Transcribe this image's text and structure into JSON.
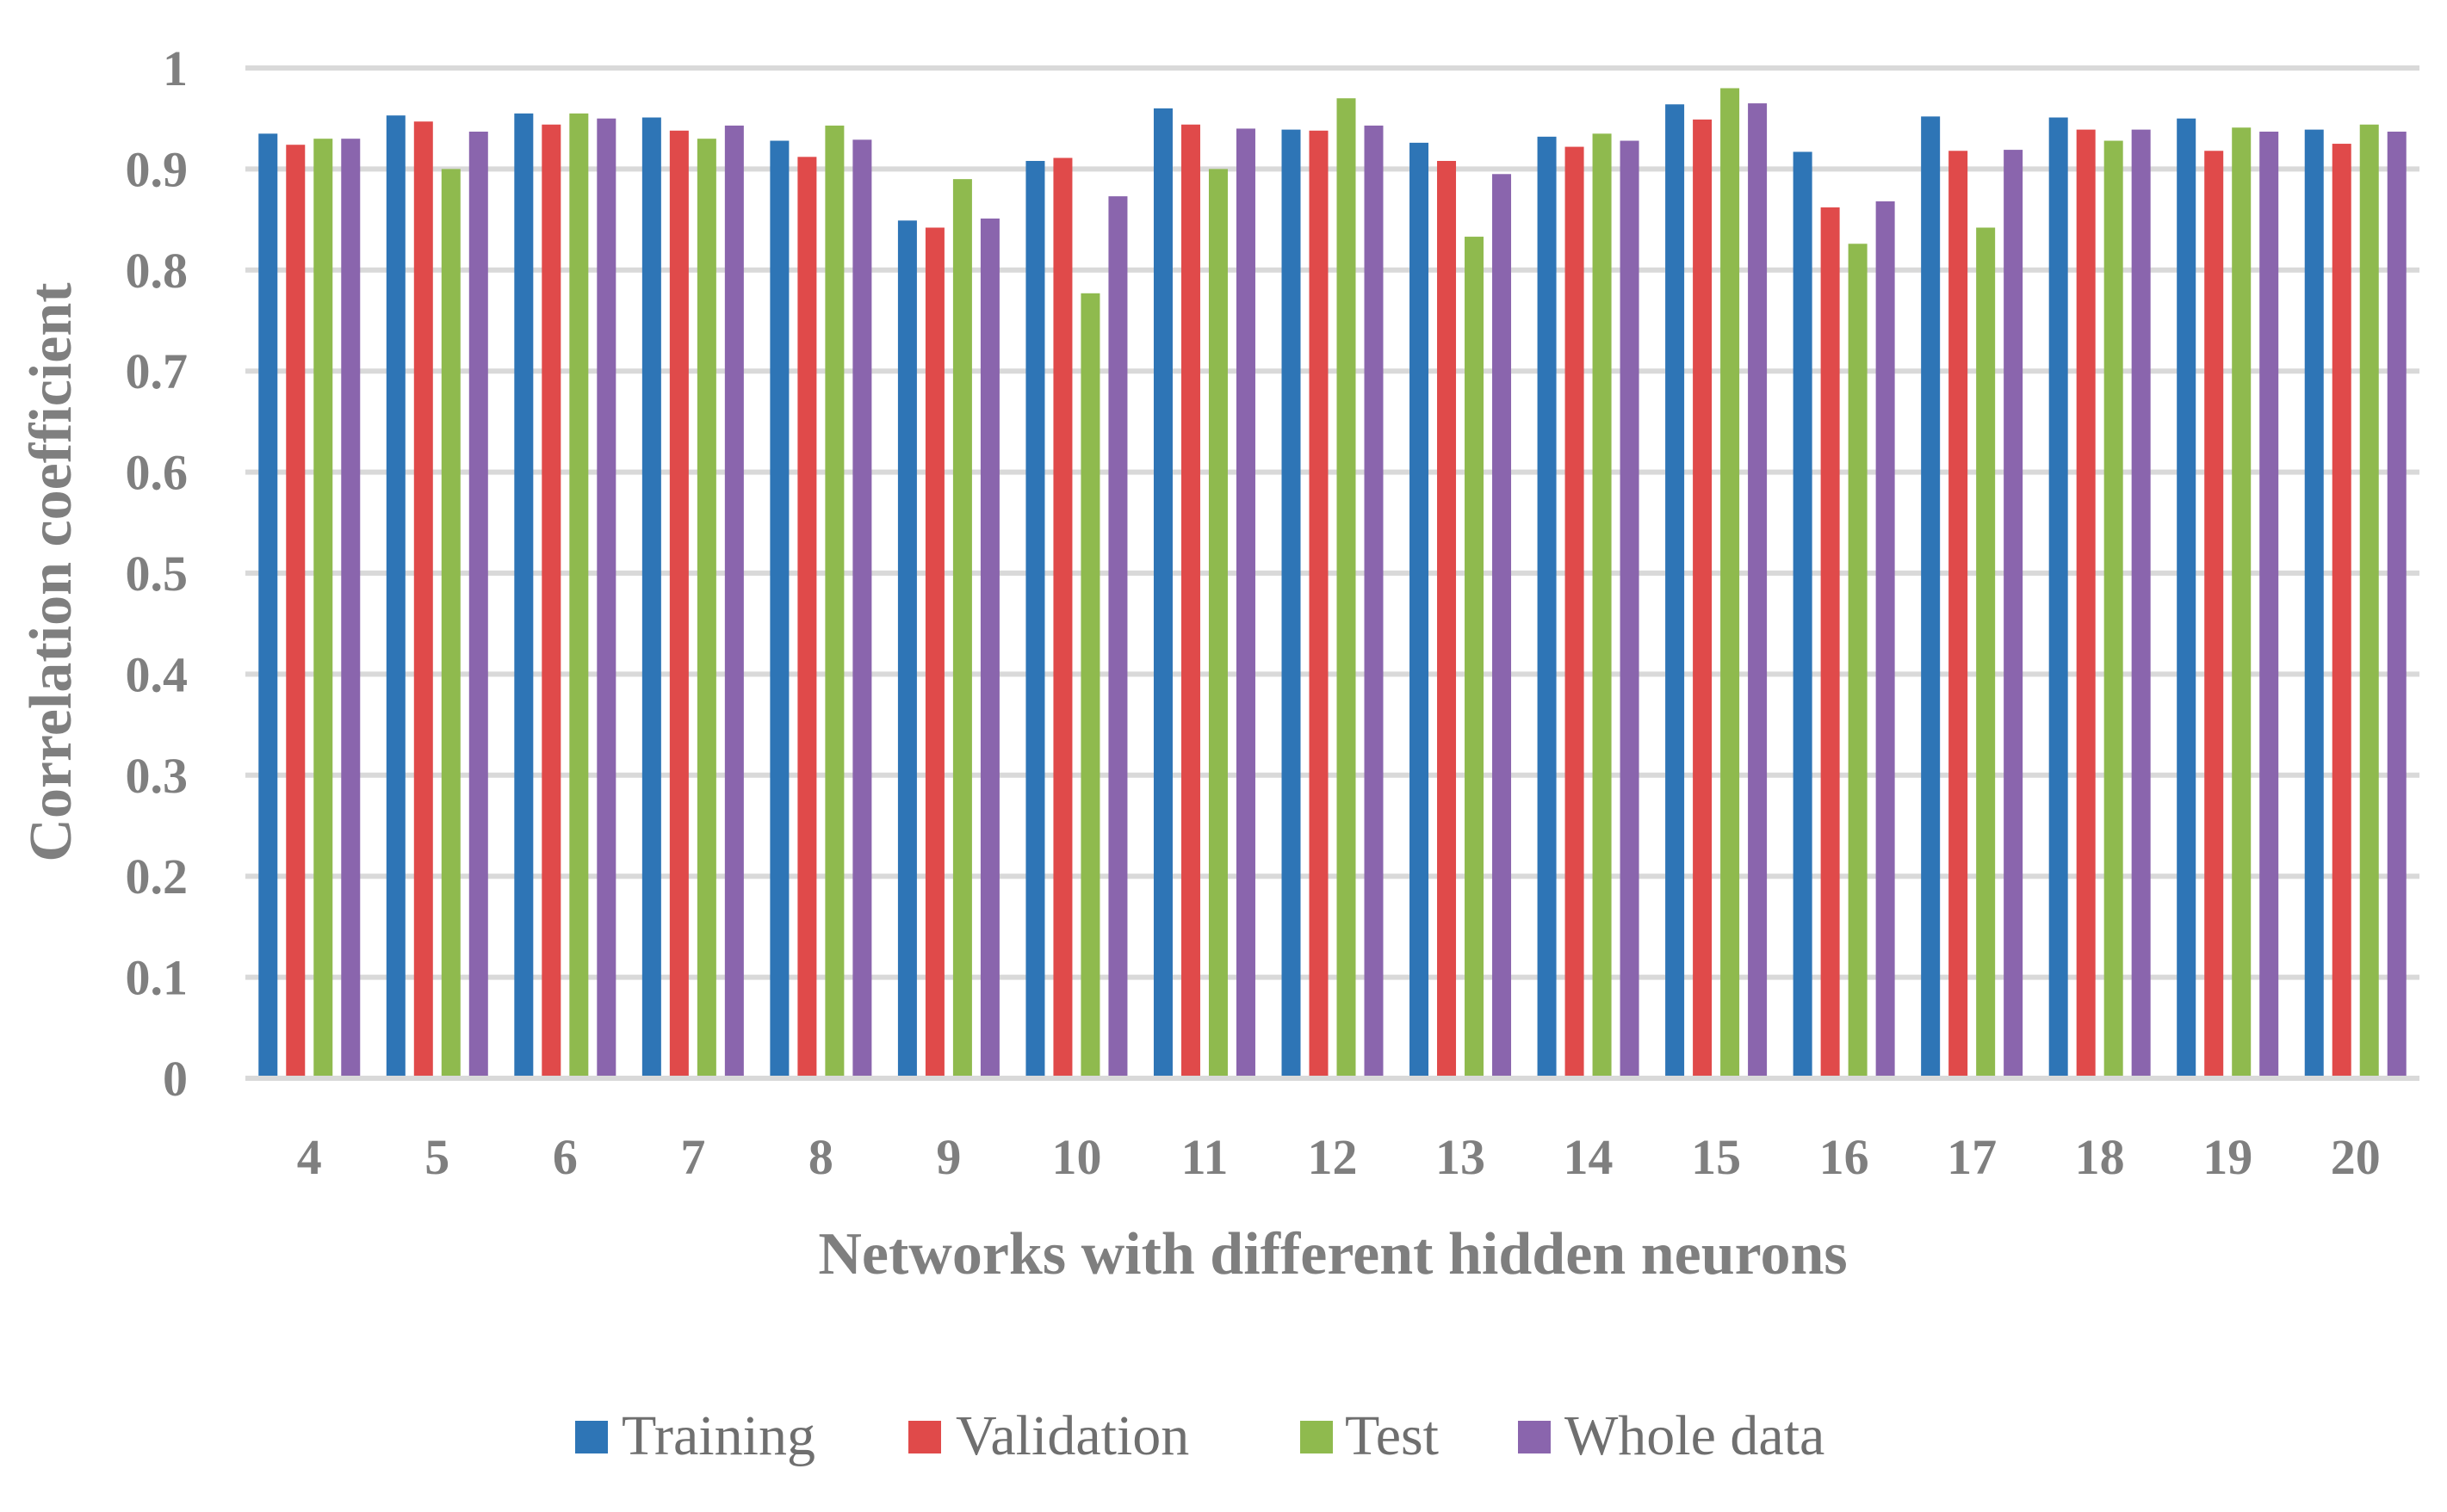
{
  "chart_data": {
    "type": "bar",
    "title": "",
    "xlabel": "Networks with different hidden neurons",
    "ylabel": "Correlation coefficient",
    "ylim": [
      0,
      1
    ],
    "yticks": [
      "0",
      "0.1",
      "0.2",
      "0.3",
      "0.4",
      "0.5",
      "0.6",
      "0.7",
      "0.8",
      "0.9",
      "1"
    ],
    "grid": true,
    "legend_position": "bottom-center",
    "categories": [
      "4",
      "5",
      "6",
      "7",
      "8",
      "9",
      "10",
      "11",
      "12",
      "13",
      "14",
      "15",
      "16",
      "17",
      "18",
      "19",
      "20"
    ],
    "series": [
      {
        "name": "Training",
        "color": "#2e75b6",
        "values": [
          0.935,
          0.953,
          0.955,
          0.951,
          0.928,
          0.849,
          0.908,
          0.96,
          0.939,
          0.926,
          0.932,
          0.964,
          0.917,
          0.952,
          0.951,
          0.95,
          0.939
        ]
      },
      {
        "name": "Validation",
        "color": "#e04a4a",
        "values": [
          0.924,
          0.947,
          0.944,
          0.938,
          0.912,
          0.842,
          0.911,
          0.944,
          0.938,
          0.908,
          0.922,
          0.949,
          0.862,
          0.918,
          0.939,
          0.918,
          0.925
        ]
      },
      {
        "name": "Test",
        "color": "#8fba4e",
        "values": [
          0.93,
          0.9,
          0.955,
          0.93,
          0.943,
          0.89,
          0.777,
          0.9,
          0.97,
          0.833,
          0.935,
          0.98,
          0.826,
          0.842,
          0.928,
          0.941,
          0.944
        ]
      },
      {
        "name": "Whole data",
        "color": "#8a65ad",
        "values": [
          0.93,
          0.937,
          0.95,
          0.943,
          0.929,
          0.851,
          0.873,
          0.94,
          0.943,
          0.895,
          0.928,
          0.965,
          0.868,
          0.919,
          0.939,
          0.937,
          0.937
        ]
      }
    ]
  }
}
